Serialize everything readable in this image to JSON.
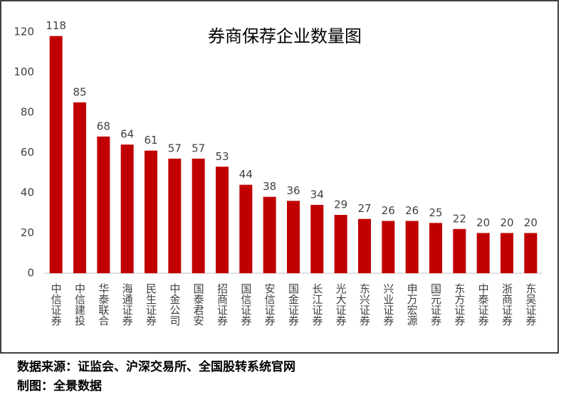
{
  "chart_data": {
    "type": "bar",
    "title": "券商保荐企业数量图",
    "categories": [
      "中信证券",
      "中信建投",
      "华泰联合",
      "海通证券",
      "民生证券",
      "中金公司",
      "国泰君安",
      "招商证券",
      "国信证券",
      "安信证券",
      "国金证券",
      "长江证券",
      "光大证券",
      "东兴证券",
      "兴业证券",
      "申万宏源",
      "国元证券",
      "东方证券",
      "中泰证券",
      "浙商证券",
      "东吴证券"
    ],
    "values": [
      118,
      85,
      68,
      64,
      61,
      57,
      57,
      53,
      44,
      38,
      36,
      34,
      29,
      27,
      26,
      26,
      25,
      22,
      20,
      20,
      20
    ],
    "color": "#c00000",
    "ylim": [
      0,
      120
    ],
    "yticks": [
      0,
      20,
      40,
      60,
      80,
      100,
      120
    ],
    "grid": false,
    "notes": [
      "数据来源：证监会、沪深交易所、全国股转系统官网",
      "制图：全景数据"
    ]
  }
}
